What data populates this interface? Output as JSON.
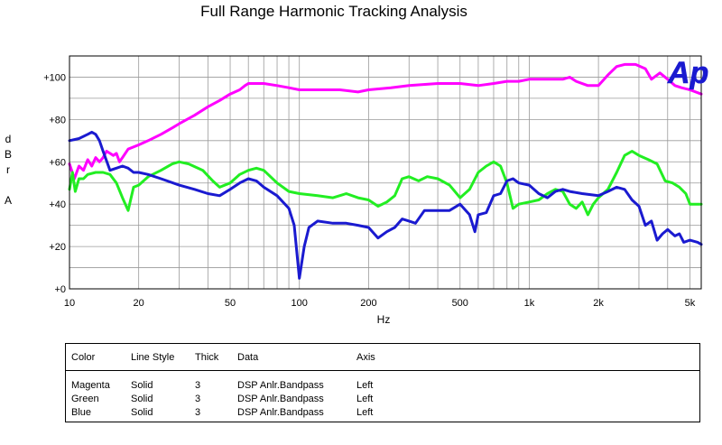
{
  "chart_data": {
    "type": "line",
    "title": "Full Range Harmonic Tracking Analysis",
    "xlabel": "Hz",
    "ylabel": "dBr A",
    "ylabel_chars": [
      "d",
      "B",
      "r",
      "",
      "A"
    ],
    "xscale": "log",
    "xlim": [
      10,
      5600
    ],
    "ylim": [
      0,
      110
    ],
    "grid": true,
    "x_ticks": [
      {
        "value": 10,
        "label": "10"
      },
      {
        "value": 20,
        "label": "20"
      },
      {
        "value": 50,
        "label": "50"
      },
      {
        "value": 100,
        "label": "100"
      },
      {
        "value": 200,
        "label": "200"
      },
      {
        "value": 500,
        "label": "500"
      },
      {
        "value": 1000,
        "label": "1k"
      },
      {
        "value": 2000,
        "label": "2k"
      },
      {
        "value": 5000,
        "label": "5k"
      }
    ],
    "y_ticks": [
      {
        "value": 0,
        "label": "+0"
      },
      {
        "value": 20,
        "label": "+20"
      },
      {
        "value": 40,
        "label": "+40"
      },
      {
        "value": 60,
        "label": "+60"
      },
      {
        "value": 80,
        "label": "+80"
      },
      {
        "value": 100,
        "label": "+100"
      }
    ],
    "series": [
      {
        "color": "#ff00ff",
        "points": [
          [
            10,
            59
          ],
          [
            10.5,
            52
          ],
          [
            11,
            58
          ],
          [
            11.5,
            56
          ],
          [
            12,
            61
          ],
          [
            12.5,
            58
          ],
          [
            13,
            62
          ],
          [
            13.5,
            60
          ],
          [
            14,
            62
          ],
          [
            14.5,
            65
          ],
          [
            15,
            64
          ],
          [
            15.5,
            63
          ],
          [
            16,
            64
          ],
          [
            16.5,
            60
          ],
          [
            17,
            62
          ],
          [
            18,
            66
          ],
          [
            20,
            68
          ],
          [
            22,
            70
          ],
          [
            25,
            73
          ],
          [
            28,
            76
          ],
          [
            30,
            78
          ],
          [
            35,
            82
          ],
          [
            40,
            86
          ],
          [
            45,
            89
          ],
          [
            50,
            92
          ],
          [
            55,
            94
          ],
          [
            58,
            96
          ],
          [
            60,
            97
          ],
          [
            70,
            97
          ],
          [
            80,
            96
          ],
          [
            90,
            95
          ],
          [
            100,
            94
          ],
          [
            120,
            94
          ],
          [
            150,
            94
          ],
          [
            180,
            93
          ],
          [
            200,
            94
          ],
          [
            250,
            95
          ],
          [
            300,
            96
          ],
          [
            400,
            97
          ],
          [
            500,
            97
          ],
          [
            600,
            96
          ],
          [
            700,
            97
          ],
          [
            800,
            98
          ],
          [
            900,
            98
          ],
          [
            1000,
            99
          ],
          [
            1200,
            99
          ],
          [
            1400,
            99
          ],
          [
            1500,
            100
          ],
          [
            1600,
            98
          ],
          [
            1800,
            96
          ],
          [
            2000,
            96
          ],
          [
            2200,
            101
          ],
          [
            2400,
            105
          ],
          [
            2600,
            106
          ],
          [
            2900,
            106
          ],
          [
            3200,
            104
          ],
          [
            3400,
            99
          ],
          [
            3700,
            102
          ],
          [
            4000,
            99
          ],
          [
            4300,
            96
          ],
          [
            4600,
            95
          ],
          [
            5000,
            94
          ],
          [
            5600,
            92
          ]
        ]
      },
      {
        "color": "#22ee22",
        "points": [
          [
            10,
            47
          ],
          [
            10.3,
            55
          ],
          [
            10.6,
            46
          ],
          [
            11,
            52
          ],
          [
            11.5,
            52
          ],
          [
            12,
            54
          ],
          [
            13,
            55
          ],
          [
            14,
            55
          ],
          [
            15,
            54
          ],
          [
            16,
            50
          ],
          [
            17,
            43
          ],
          [
            18,
            37
          ],
          [
            19,
            48
          ],
          [
            20,
            49
          ],
          [
            22,
            53
          ],
          [
            25,
            56
          ],
          [
            28,
            59
          ],
          [
            30,
            60
          ],
          [
            33,
            59
          ],
          [
            38,
            56
          ],
          [
            42,
            51
          ],
          [
            45,
            48
          ],
          [
            50,
            50
          ],
          [
            55,
            54
          ],
          [
            60,
            56
          ],
          [
            65,
            57
          ],
          [
            70,
            56
          ],
          [
            80,
            50
          ],
          [
            90,
            46
          ],
          [
            100,
            45
          ],
          [
            120,
            44
          ],
          [
            140,
            43
          ],
          [
            160,
            45
          ],
          [
            180,
            43
          ],
          [
            200,
            42
          ],
          [
            220,
            39
          ],
          [
            240,
            41
          ],
          [
            260,
            44
          ],
          [
            280,
            52
          ],
          [
            300,
            53
          ],
          [
            330,
            51
          ],
          [
            360,
            53
          ],
          [
            400,
            52
          ],
          [
            450,
            49
          ],
          [
            500,
            43
          ],
          [
            550,
            47
          ],
          [
            600,
            55
          ],
          [
            650,
            58
          ],
          [
            700,
            60
          ],
          [
            750,
            58
          ],
          [
            800,
            50
          ],
          [
            850,
            38
          ],
          [
            900,
            40
          ],
          [
            1000,
            41
          ],
          [
            1100,
            42
          ],
          [
            1200,
            45
          ],
          [
            1300,
            47
          ],
          [
            1400,
            46
          ],
          [
            1500,
            40
          ],
          [
            1600,
            38
          ],
          [
            1700,
            41
          ],
          [
            1800,
            35
          ],
          [
            1900,
            40
          ],
          [
            2000,
            43
          ],
          [
            2200,
            47
          ],
          [
            2400,
            55
          ],
          [
            2600,
            63
          ],
          [
            2800,
            65
          ],
          [
            3000,
            63
          ],
          [
            3300,
            61
          ],
          [
            3600,
            59
          ],
          [
            3900,
            51
          ],
          [
            4200,
            50
          ],
          [
            4500,
            48
          ],
          [
            4800,
            45
          ],
          [
            5000,
            40
          ],
          [
            5300,
            40
          ],
          [
            5600,
            40
          ]
        ]
      },
      {
        "color": "#1a1ad0",
        "points": [
          [
            10,
            70
          ],
          [
            11,
            71
          ],
          [
            12,
            73
          ],
          [
            12.5,
            74
          ],
          [
            13,
            73
          ],
          [
            13.5,
            70
          ],
          [
            14,
            65
          ],
          [
            15,
            56
          ],
          [
            16,
            57
          ],
          [
            17,
            58
          ],
          [
            18,
            57
          ],
          [
            19,
            55
          ],
          [
            20,
            55
          ],
          [
            22,
            54
          ],
          [
            25,
            52
          ],
          [
            30,
            49
          ],
          [
            35,
            47
          ],
          [
            40,
            45
          ],
          [
            45,
            44
          ],
          [
            50,
            47
          ],
          [
            55,
            50
          ],
          [
            60,
            52
          ],
          [
            65,
            51
          ],
          [
            70,
            48
          ],
          [
            80,
            44
          ],
          [
            90,
            38
          ],
          [
            95,
            30
          ],
          [
            100,
            5
          ],
          [
            105,
            20
          ],
          [
            110,
            29
          ],
          [
            120,
            32
          ],
          [
            140,
            31
          ],
          [
            160,
            31
          ],
          [
            180,
            30
          ],
          [
            200,
            29
          ],
          [
            220,
            24
          ],
          [
            240,
            27
          ],
          [
            260,
            29
          ],
          [
            280,
            33
          ],
          [
            300,
            32
          ],
          [
            320,
            31
          ],
          [
            350,
            37
          ],
          [
            400,
            37
          ],
          [
            450,
            37
          ],
          [
            500,
            40
          ],
          [
            550,
            35
          ],
          [
            580,
            27
          ],
          [
            600,
            35
          ],
          [
            650,
            36
          ],
          [
            700,
            44
          ],
          [
            750,
            45
          ],
          [
            800,
            51
          ],
          [
            850,
            52
          ],
          [
            900,
            50
          ],
          [
            1000,
            49
          ],
          [
            1100,
            45
          ],
          [
            1200,
            43
          ],
          [
            1300,
            46
          ],
          [
            1400,
            47
          ],
          [
            1500,
            46
          ],
          [
            1700,
            45
          ],
          [
            2000,
            44
          ],
          [
            2200,
            46
          ],
          [
            2400,
            48
          ],
          [
            2600,
            47
          ],
          [
            2800,
            42
          ],
          [
            3000,
            39
          ],
          [
            3200,
            30
          ],
          [
            3400,
            32
          ],
          [
            3600,
            23
          ],
          [
            3800,
            26
          ],
          [
            4000,
            28
          ],
          [
            4300,
            25
          ],
          [
            4500,
            26
          ],
          [
            4700,
            22
          ],
          [
            5000,
            23
          ],
          [
            5400,
            22
          ],
          [
            5600,
            21
          ]
        ]
      }
    ]
  },
  "logo": "Ap",
  "legend_table": {
    "headers": [
      "Color",
      "Line Style",
      "Thick",
      "Data",
      "Axis"
    ],
    "rows": [
      [
        "Magenta",
        "Solid",
        "3",
        "DSP Anlr.Bandpass",
        "Left"
      ],
      [
        "Green",
        "Solid",
        "3",
        "DSP Anlr.Bandpass",
        "Left"
      ],
      [
        "Blue",
        "Solid",
        "3",
        "DSP Anlr.Bandpass",
        "Left"
      ]
    ]
  }
}
